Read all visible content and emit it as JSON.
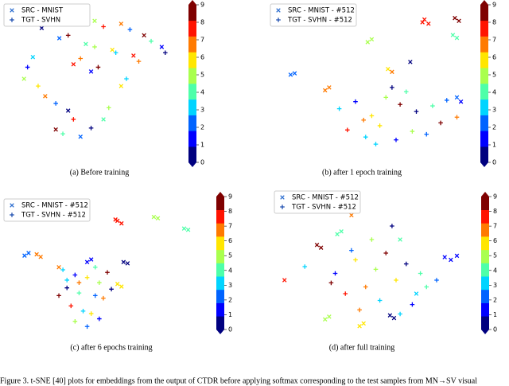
{
  "chart_data": [
    {
      "type": "scatter",
      "caption": "(a) Before training",
      "xlim": [
        0,
        100
      ],
      "ylim": [
        0,
        100
      ],
      "series": [
        {
          "name": "SRC - MNIST",
          "marker": "x",
          "x": [
            20,
            35,
            50,
            65,
            78,
            88,
            30,
            45,
            60,
            72,
            15,
            10,
            22,
            35,
            28,
            42,
            55,
            65,
            48,
            38
          ],
          "y": [
            85,
            92,
            90,
            88,
            80,
            72,
            78,
            74,
            70,
            66,
            65,
            50,
            38,
            28,
            15,
            10,
            22,
            45,
            55,
            60
          ],
          "c": [
            0,
            3,
            5,
            7,
            9,
            1,
            2,
            4,
            6,
            8,
            3,
            5,
            7,
            0,
            9,
            2,
            4,
            6,
            1,
            8
          ]
        },
        {
          "name": "TGT - SVHN",
          "marker": "+",
          "x": [
            25,
            40,
            55,
            70,
            82,
            90,
            35,
            50,
            62,
            75,
            12,
            18,
            28,
            38,
            32,
            48,
            58,
            68,
            52,
            42
          ],
          "y": [
            88,
            95,
            86,
            84,
            76,
            68,
            80,
            72,
            68,
            62,
            58,
            45,
            33,
            22,
            12,
            16,
            30,
            50,
            58,
            64
          ],
          "c": [
            6,
            1,
            8,
            2,
            4,
            0,
            9,
            5,
            3,
            7,
            1,
            6,
            2,
            8,
            4,
            0,
            5,
            3,
            9,
            7
          ]
        }
      ],
      "colorbar": {
        "clim": [
          0,
          9
        ],
        "ticks": [
          0,
          1,
          2,
          3,
          4,
          5,
          6,
          7,
          8,
          9
        ],
        "colors": [
          "#00007f",
          "#0000ff",
          "#0063ff",
          "#00d4ff",
          "#4effa9",
          "#a9ff4e",
          "#ffe600",
          "#ff7a00",
          "#ff1300",
          "#7f0000"
        ]
      }
    },
    {
      "type": "scatter",
      "caption": "(b) after 1 epoch training",
      "xlim": [
        0,
        100
      ],
      "ylim": [
        0,
        100
      ],
      "series": [
        {
          "name": "SRC - MNIST - #512",
          "marker": "x",
          "x": [
            74,
            76,
            73,
            89,
            91,
            46,
            48,
            88,
            90,
            56,
            58,
            67,
            8,
            10,
            25,
            27,
            90,
            92
          ],
          "y": [
            93,
            90,
            91,
            94,
            92,
            77,
            79,
            82,
            80,
            58,
            56,
            63,
            54,
            55,
            43,
            45,
            38,
            35
          ],
          "c": [
            8,
            8,
            8,
            9,
            9,
            5,
            5,
            4,
            4,
            6,
            7,
            0,
            2,
            2,
            7,
            7,
            2,
            1
          ]
        },
        {
          "name": "TGT - SVHN - #512",
          "marker": "+",
          "x": [
            32,
            40,
            48,
            55,
            62,
            70,
            78,
            85,
            90,
            36,
            45,
            52,
            60,
            68,
            75,
            82,
            58,
            65,
            44,
            50
          ],
          "y": [
            30,
            35,
            25,
            38,
            33,
            28,
            32,
            36,
            24,
            15,
            10,
            18,
            8,
            14,
            12,
            20,
            45,
            42,
            22,
            5
          ],
          "c": [
            3,
            1,
            6,
            5,
            9,
            0,
            4,
            2,
            7,
            8,
            3,
            6,
            1,
            5,
            2,
            9,
            0,
            4,
            7,
            3
          ]
        }
      ],
      "colorbar": {
        "clim": [
          0,
          9
        ],
        "ticks": [
          0,
          1,
          2,
          3,
          4,
          5,
          6,
          7,
          8,
          9
        ],
        "colors": [
          "#00007f",
          "#0000ff",
          "#0063ff",
          "#00d4ff",
          "#4effa9",
          "#a9ff4e",
          "#ffe600",
          "#ff7a00",
          "#ff1300",
          "#7f0000"
        ]
      }
    },
    {
      "type": "scatter",
      "caption": "(c) after 6 epochs training",
      "xlim": [
        0,
        100
      ],
      "ylim": [
        0,
        100
      ],
      "series": [
        {
          "name": "SRC - MNIST - #512",
          "marker": "x",
          "x": [
            55,
            57,
            54,
            73,
            75,
            88,
            90,
            15,
            17,
            9,
            11,
            58,
            60,
            55,
            57,
            40,
            42,
            26
          ],
          "y": [
            88,
            86,
            89,
            91,
            90,
            82,
            81,
            62,
            60,
            61,
            63,
            56,
            55,
            39,
            37,
            56,
            58,
            52
          ],
          "c": [
            8,
            8,
            8,
            5,
            5,
            4,
            4,
            7,
            7,
            2,
            2,
            0,
            0,
            6,
            6,
            1,
            1,
            7
          ]
        },
        {
          "name": "TGT - SVHN - #512",
          "marker": "+",
          "x": [
            28,
            34,
            40,
            46,
            50,
            30,
            36,
            44,
            48,
            32,
            38,
            42,
            46,
            34,
            40,
            26,
            52,
            44,
            36,
            30
          ],
          "y": [
            50,
            46,
            44,
            40,
            48,
            36,
            32,
            30,
            28,
            22,
            18,
            16,
            12,
            10,
            6,
            30,
            35,
            52,
            40,
            42
          ],
          "c": [
            3,
            1,
            6,
            5,
            9,
            0,
            4,
            2,
            7,
            8,
            3,
            6,
            1,
            5,
            2,
            9,
            0,
            4,
            7,
            3
          ]
        }
      ],
      "colorbar": {
        "clim": [
          0,
          9
        ],
        "ticks": [
          0,
          1,
          2,
          3,
          4,
          5,
          6,
          7,
          8,
          9
        ],
        "colors": [
          "#00007f",
          "#0000ff",
          "#0063ff",
          "#00d4ff",
          "#4effa9",
          "#a9ff4e",
          "#ffe600",
          "#ff7a00",
          "#ff1300",
          "#7f0000"
        ]
      }
    },
    {
      "type": "scatter",
      "caption": "(d) after full training",
      "xlim": [
        0,
        100
      ],
      "ylim": [
        0,
        100
      ],
      "series": [
        {
          "name": "SRC - MNIST - #512",
          "marker": "x",
          "x": [
            36,
            38,
            21,
            23,
            31,
            33,
            84,
            87,
            90,
            57,
            59,
            25,
            27,
            42,
            44,
            70,
            5,
            62
          ],
          "y": [
            91,
            88,
            66,
            64,
            74,
            76,
            57,
            55,
            58,
            14,
            12,
            11,
            13,
            6,
            8,
            30,
            40,
            70
          ],
          "c": [
            7,
            7,
            9,
            9,
            4,
            4,
            1,
            1,
            1,
            0,
            0,
            5,
            5,
            6,
            6,
            3,
            8,
            4
          ]
        },
        {
          "name": "TGT - SVHN - #512",
          "marker": "+",
          "x": [
            15,
            30,
            40,
            50,
            55,
            65,
            72,
            80,
            45,
            35,
            52,
            60,
            68,
            48,
            38,
            28,
            58,
            75,
            42,
            62
          ],
          "y": [
            50,
            45,
            55,
            48,
            60,
            52,
            45,
            40,
            35,
            30,
            25,
            40,
            22,
            70,
            62,
            38,
            80,
            35,
            18,
            15
          ],
          "c": [
            3,
            1,
            6,
            5,
            9,
            0,
            4,
            2,
            7,
            8,
            3,
            6,
            1,
            5,
            2,
            9,
            0,
            4,
            7,
            3
          ]
        }
      ],
      "colorbar": {
        "clim": [
          0,
          9
        ],
        "ticks": [
          0,
          1,
          2,
          3,
          4,
          5,
          6,
          7,
          8,
          9
        ],
        "colors": [
          "#00007f",
          "#0000ff",
          "#0063ff",
          "#00d4ff",
          "#4effa9",
          "#a9ff4e",
          "#ffe600",
          "#ff7a00",
          "#ff1300",
          "#7f0000"
        ]
      }
    }
  ],
  "figure_caption": "Figure 3.   t-SNE [40] plots for embeddings from the output of CTDR before applying softmax corresponding to the test samples from MN→SV visual"
}
